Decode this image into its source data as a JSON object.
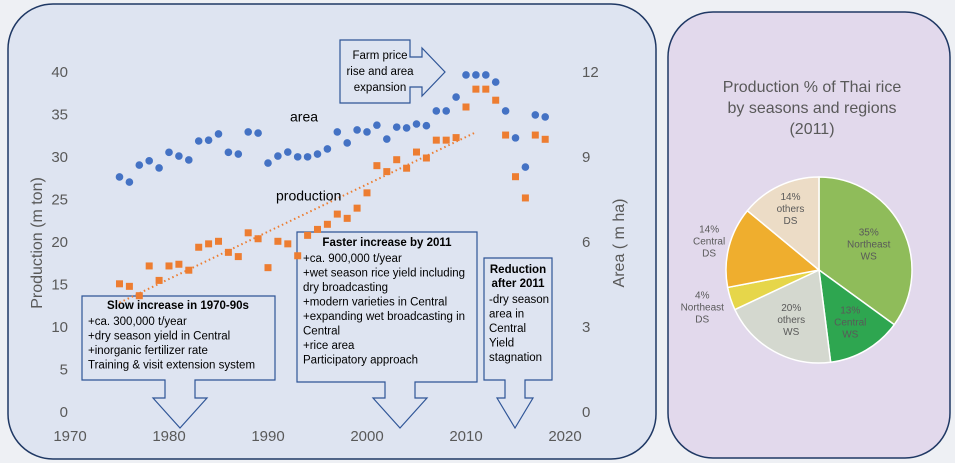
{
  "chart_data": [
    {
      "type": "scatter",
      "y_label": "Production (m ton)",
      "y2_label": "Area ( m ha)",
      "x": [
        1975,
        1976,
        1977,
        1978,
        1979,
        1980,
        1981,
        1982,
        1983,
        1984,
        1985,
        1986,
        1987,
        1988,
        1989,
        1990,
        1991,
        1992,
        1993,
        1994,
        1995,
        1996,
        1997,
        1998,
        1999,
        2000,
        2001,
        2002,
        2003,
        2004,
        2005,
        2006,
        2007,
        2008,
        2009,
        2010,
        2011,
        2012,
        2013,
        2014,
        2015,
        2016,
        2017,
        2018
      ],
      "series": [
        {
          "name": "production",
          "color": "#ed7d31",
          "marker": "square",
          "values": [
            15.2,
            14.9,
            13.8,
            17.3,
            15.6,
            17.3,
            17.5,
            16.8,
            19.5,
            19.9,
            20.2,
            18.9,
            18.4,
            21.2,
            20.5,
            17.1,
            20.2,
            19.9,
            18.5,
            20.9,
            21.6,
            22.2,
            23.4,
            22.9,
            24.1,
            25.9,
            29.1,
            28.4,
            29.8,
            28.8,
            30.7,
            30,
            32.1,
            32.1,
            32.4,
            36,
            38.1,
            38.1,
            36.8,
            32.7,
            27.8,
            25.3,
            32.7,
            32.2
          ]
        },
        {
          "name": "area",
          "color": "#4472c4",
          "marker": "circle",
          "axis": "y2",
          "values": [
            8.33,
            8.15,
            8.75,
            8.9,
            8.65,
            9.2,
            9.07,
            8.93,
            9.6,
            9.63,
            9.85,
            9.2,
            9.14,
            9.92,
            9.88,
            8.82,
            9.07,
            9.21,
            9.04,
            9.04,
            9.14,
            9.32,
            9.92,
            9.53,
            9.99,
            9.92,
            10.16,
            9.67,
            10.09,
            10.06,
            10.2,
            10.14,
            10.66,
            10.66,
            11.15,
            11.93,
            11.93,
            11.93,
            11.68,
            10.66,
            9.71,
            8.68,
            10.52,
            10.45
          ]
        }
      ],
      "xlim": [
        1970,
        2020
      ],
      "xticks": [
        1970,
        1980,
        1990,
        2000,
        2010,
        2020
      ],
      "ylim": [
        0,
        40
      ],
      "yticks": [
        0,
        5,
        10,
        15,
        20,
        25,
        30,
        35,
        40
      ],
      "y2lim": [
        0,
        12
      ],
      "y2ticks": [
        0,
        3,
        6,
        9,
        12
      ],
      "grid": false,
      "trendline": true,
      "annotations": [
        {
          "title": [],
          "lines": [
            "Farm price",
            "rise and area",
            "expansion"
          ]
        },
        {
          "title": [
            "Slow increase in 1970-90s"
          ],
          "lines": [
            "+ca. 300,000 t/year",
            "+dry season yield in Central",
            "+inorganic fertilizer rate",
            "Training & visit extension system"
          ]
        },
        {
          "title": [
            "Faster increase by 2011"
          ],
          "lines": [
            "+ca. 900,000 t/year",
            "+wet season rice yield including",
            "dry broadcasting",
            "+modern varieties in Central",
            "+expanding wet broadcasting in",
            "Central",
            "+rice area",
            "Participatory approach"
          ]
        },
        {
          "title": [
            "Reduction",
            "after 2011"
          ],
          "lines": [
            "-dry season",
            "area in",
            "Central",
            "Yield",
            "stagnation"
          ]
        }
      ]
    },
    {
      "type": "pie",
      "title": [
        "Production % of Thai rice",
        "by seasons and regions",
        "(2011)"
      ],
      "categories": [
        [
          "Northeast",
          "WS"
        ],
        [
          "Central",
          "WS"
        ],
        [
          "others",
          "WS"
        ],
        [
          "Northeast",
          "DS"
        ],
        [
          "Central",
          "DS"
        ],
        [
          "others",
          "DS"
        ]
      ],
      "values": [
        35,
        13,
        20,
        4,
        14,
        14
      ],
      "value_labels": [
        "35%",
        "13%",
        "20%",
        "4%",
        "14%",
        "14%"
      ],
      "colors": [
        "#8fbc5a",
        "#2ea650",
        "#d4d8cf",
        "#e6d64a",
        "#efae2e",
        "#ecdcc6"
      ]
    }
  ]
}
